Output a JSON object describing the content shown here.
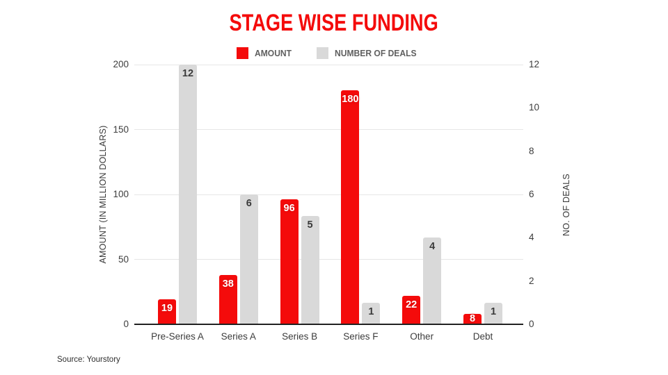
{
  "title": "STAGE WISE FUNDING",
  "title_color": "#f40b0b",
  "source": "Source: Yourstory",
  "legend": [
    {
      "label": "AMOUNT",
      "color": "#f40b0b"
    },
    {
      "label": "NUMBER OF DEALS",
      "color": "#d9d9d9"
    }
  ],
  "chart_data": {
    "type": "bar",
    "title": "STAGE WISE FUNDING",
    "categories": [
      "Pre-Series A",
      "Series A",
      "Series B",
      "Series F",
      "Other",
      "Debt"
    ],
    "series": [
      {
        "name": "AMOUNT",
        "axis": "left",
        "color": "#f40b0b",
        "values": [
          19,
          38,
          96,
          180,
          22,
          8
        ]
      },
      {
        "name": "NUMBER OF DEALS",
        "axis": "right",
        "color": "#d9d9d9",
        "values": [
          12,
          6,
          5,
          1,
          4,
          1
        ]
      }
    ],
    "left_axis": {
      "title": "AMOUNT (IN MILLION DOLLARS)",
      "ticks": [
        0,
        50,
        100,
        150,
        200
      ],
      "range": [
        0,
        200
      ]
    },
    "right_axis": {
      "title": "NO. OF DEALS",
      "ticks": [
        0,
        2,
        4,
        6,
        8,
        10,
        12
      ],
      "range": [
        0,
        12
      ]
    },
    "grid": true,
    "legend_position": "top"
  }
}
